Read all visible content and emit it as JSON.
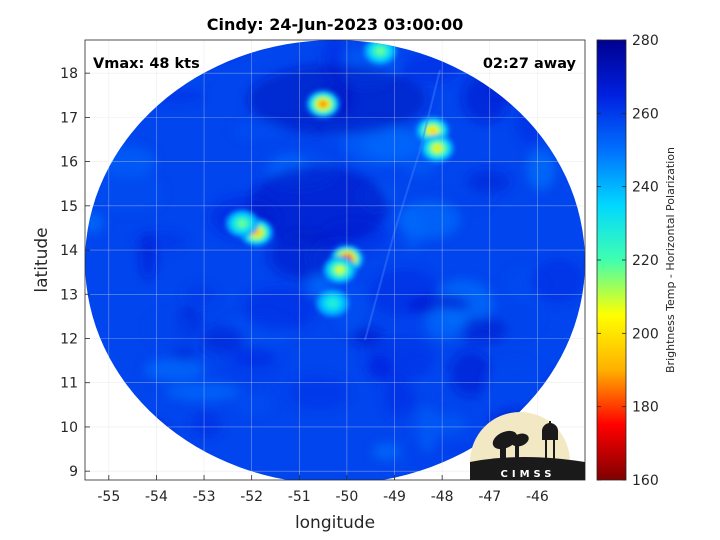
{
  "chart_data": {
    "type": "heatmap",
    "title": "Cindy: 24-Jun-2023 03:00:00",
    "xlabel": "longitude",
    "ylabel": "latitude",
    "xlim": [
      -55.5,
      -45.0
    ],
    "ylim": [
      8.8,
      18.75
    ],
    "x_ticks": [
      -55,
      -54,
      -53,
      -52,
      -51,
      -50,
      -49,
      -48,
      -47,
      -46
    ],
    "x_tick_labels": [
      "-55",
      "-54",
      "-53",
      "-52",
      "-51",
      "-50",
      "-49",
      "-48",
      "-47",
      "-46"
    ],
    "y_ticks": [
      9,
      10,
      11,
      12,
      13,
      14,
      15,
      16,
      17,
      18
    ],
    "y_tick_labels": [
      "9",
      "10",
      "11",
      "12",
      "13",
      "14",
      "15",
      "16",
      "17",
      "18"
    ],
    "grid": true,
    "colorbar": {
      "label": "Brightness Temp - Horizontal Polarization",
      "min": 160,
      "max": 280,
      "ticks": [
        160,
        180,
        200,
        220,
        240,
        260,
        280
      ],
      "tick_labels": [
        "160",
        "180",
        "200",
        "220",
        "240",
        "260",
        "280"
      ],
      "colormap": "jet-reversed",
      "stops": [
        "#800000",
        "#ff0000",
        "#ffb000",
        "#ffff00",
        "#40ffb0",
        "#00d8ff",
        "#0070ff",
        "#0020e0",
        "#000090"
      ]
    },
    "swath_background_value": 258,
    "outside_swath_color": "#ffffff",
    "features": [
      {
        "name": "core",
        "lon": -50.0,
        "lat": 13.8,
        "min_value": 168
      },
      {
        "name": "inner-eyewall-ring",
        "lon": -50.15,
        "lat": 13.55,
        "min_value": 205
      },
      {
        "name": "southern-band",
        "lon": -50.3,
        "lat": 12.8,
        "min_value": 225
      },
      {
        "name": "western-band-1",
        "lon": -51.9,
        "lat": 14.4,
        "min_value": 190
      },
      {
        "name": "western-band-2",
        "lon": -52.2,
        "lat": 14.6,
        "min_value": 215
      },
      {
        "name": "northern-cell-1",
        "lon": -50.5,
        "lat": 17.3,
        "min_value": 185
      },
      {
        "name": "northern-cell-2",
        "lon": -48.2,
        "lat": 16.7,
        "min_value": 195
      },
      {
        "name": "northeast-cell",
        "lon": -48.1,
        "lat": 16.3,
        "min_value": 200
      },
      {
        "name": "northern-cell-3",
        "lon": -49.3,
        "lat": 18.5,
        "min_value": 215
      }
    ]
  },
  "annotations": {
    "vmax": "Vmax: 48 kts",
    "time_away": "02:27 away"
  },
  "logo": {
    "text": "CIMSS"
  }
}
